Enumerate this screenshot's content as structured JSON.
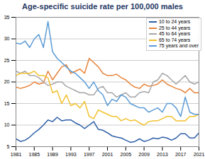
{
  "chart_data": {
    "type": "line",
    "title": "Age-specific suicide rate per 100,000 males",
    "x": [
      1981,
      1982,
      1983,
      1984,
      1985,
      1986,
      1987,
      1988,
      1989,
      1990,
      1991,
      1992,
      1993,
      1994,
      1995,
      1996,
      1997,
      1998,
      1999,
      2000,
      2001,
      2002,
      2003,
      2004,
      2005,
      2006,
      2007,
      2008,
      2009,
      2010,
      2011,
      2012,
      2013,
      2014,
      2015,
      2016,
      2017,
      2018,
      2019,
      2020,
      2021
    ],
    "series": [
      {
        "name": "10 to 24 years",
        "color": "#2f5fa7",
        "values": [
          6.8,
          6.2,
          6.5,
          7.2,
          8.2,
          9.0,
          10.0,
          11.2,
          10.8,
          11.8,
          11.0,
          11.2,
          11.2,
          10.5,
          10.0,
          9.2,
          10.0,
          10.8,
          9.0,
          8.8,
          8.2,
          7.5,
          7.2,
          7.0,
          6.5,
          6.0,
          6.2,
          6.8,
          6.2,
          6.5,
          7.0,
          6.8,
          7.2,
          7.0,
          6.5,
          7.0,
          8.0,
          8.0,
          7.0,
          7.0,
          8.2
        ]
      },
      {
        "name": "25 to 44 years",
        "color": "#e8843a",
        "values": [
          18.8,
          18.5,
          18.8,
          19.2,
          20.0,
          19.5,
          19.8,
          22.5,
          20.5,
          22.0,
          23.5,
          24.0,
          22.0,
          22.5,
          23.0,
          22.0,
          25.5,
          24.5,
          23.5,
          22.0,
          21.5,
          21.5,
          21.8,
          21.0,
          20.5,
          19.5,
          18.8,
          18.5,
          19.5,
          19.0,
          19.2,
          19.5,
          20.5,
          19.5,
          19.0,
          18.5,
          18.2,
          17.5,
          18.5,
          17.5,
          17.5
        ]
      },
      {
        "name": "45 to 64 years",
        "color": "#a6a6a6",
        "values": [
          22.5,
          22.0,
          22.5,
          21.5,
          21.5,
          21.0,
          20.0,
          19.2,
          19.5,
          20.0,
          20.0,
          19.0,
          18.5,
          18.0,
          17.5,
          17.5,
          17.0,
          17.0,
          18.5,
          19.0,
          17.5,
          17.5,
          16.5,
          17.0,
          17.5,
          16.5,
          16.5,
          17.5,
          17.8,
          17.5,
          20.0,
          20.5,
          22.0,
          21.5,
          20.5,
          19.5,
          20.5,
          21.5,
          20.0,
          19.5,
          20.0
        ]
      },
      {
        "name": "65 to 74 years",
        "color": "#f2c12e",
        "values": [
          21.5,
          22.0,
          22.0,
          22.0,
          22.5,
          21.5,
          21.5,
          21.0,
          17.5,
          18.0,
          15.0,
          17.0,
          14.5,
          15.0,
          14.0,
          15.5,
          12.0,
          11.5,
          13.5,
          13.0,
          12.5,
          12.0,
          12.0,
          11.0,
          11.5,
          11.0,
          11.2,
          10.5,
          10.0,
          10.8,
          11.0,
          11.0,
          11.5,
          12.0,
          12.0,
          11.0,
          11.0,
          11.0,
          12.0,
          12.0,
          12.5
        ]
      },
      {
        "name": "75 years and over",
        "color": "#5b9bd5",
        "values": [
          29.0,
          28.8,
          29.5,
          28.0,
          30.0,
          31.0,
          28.0,
          34.0,
          27.0,
          25.5,
          24.5,
          23.5,
          22.5,
          22.0,
          21.0,
          20.0,
          18.5,
          20.0,
          18.0,
          17.0,
          14.5,
          16.0,
          15.5,
          17.0,
          16.5,
          15.0,
          14.5,
          14.0,
          14.0,
          13.0,
          13.5,
          14.0,
          13.0,
          15.0,
          15.0,
          14.0,
          12.0,
          16.5,
          13.0,
          12.5,
          12.5
        ]
      }
    ],
    "xlim": [
      1981,
      2021
    ],
    "xticks": [
      1981,
      1985,
      1989,
      1993,
      1997,
      2001,
      2005,
      2009,
      2013,
      2017,
      2021
    ],
    "ylim": [
      5,
      35
    ],
    "yticks": [
      5,
      10,
      15,
      20,
      25,
      30,
      35
    ],
    "grid": true,
    "legend": "top-right"
  }
}
